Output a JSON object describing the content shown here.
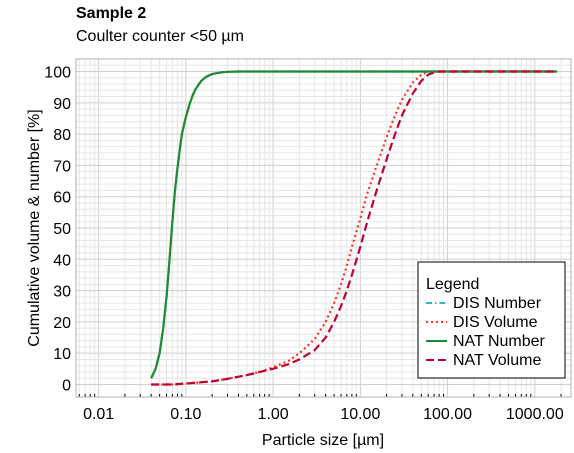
{
  "chart_data": {
    "type": "line",
    "title": "Sample 2",
    "subtitle": "Coulter counter <50 µm",
    "xlabel": "Particle size [µm]",
    "ylabel": "Cumulative volume & number [%]",
    "xscale": "log",
    "xlim": [
      0.0055,
      2600
    ],
    "ylim": [
      -4,
      104
    ],
    "xticks": [
      0.01,
      0.1,
      1,
      10,
      100,
      1000
    ],
    "xtick_labels": [
      "0.01",
      "0.10",
      "1.00",
      "10.00",
      "100.00",
      "1000.00"
    ],
    "yticks": [
      0,
      10,
      20,
      30,
      40,
      50,
      60,
      70,
      80,
      90,
      100
    ],
    "grid": true,
    "legend": {
      "title": "Legend",
      "position": "bottom-right"
    },
    "series": [
      {
        "name": "DIS Number",
        "color": "#3cb4b4",
        "dash": "dashdot",
        "x": [
          0.04,
          0.045,
          0.05,
          0.055,
          0.06,
          0.065,
          0.07,
          0.075,
          0.08,
          0.085,
          0.09,
          0.1,
          0.11,
          0.12,
          0.13,
          0.15,
          0.17,
          0.2,
          0.25,
          0.3,
          0.4,
          0.5,
          0.7,
          1,
          2,
          5,
          10,
          20,
          50,
          100,
          200,
          500,
          1000,
          1800
        ],
        "y": [
          2,
          5,
          10,
          18,
          28,
          40,
          52,
          62,
          69,
          75,
          80,
          85.5,
          89.5,
          92.5,
          94.5,
          97,
          98.3,
          99.2,
          99.7,
          99.9,
          100,
          100,
          100,
          100,
          100,
          100,
          100,
          100,
          100,
          100,
          100,
          100,
          100,
          100
        ]
      },
      {
        "name": "DIS Volume",
        "color": "#ff3322",
        "dash": "dotted",
        "x": [
          0.04,
          0.07,
          0.1,
          0.2,
          0.3,
          0.5,
          0.7,
          1,
          1.5,
          2,
          3,
          4,
          5,
          6,
          7,
          8,
          10,
          12,
          15,
          20,
          25,
          30,
          40,
          50,
          60,
          70,
          80,
          100,
          200,
          500,
          1000,
          1800
        ],
        "y": [
          0,
          0,
          0.3,
          1,
          1.8,
          3,
          4,
          5.5,
          7.5,
          10,
          14.5,
          20,
          26,
          32,
          38,
          44,
          53,
          61,
          69,
          79,
          86,
          91,
          96.5,
          99,
          100,
          100,
          100,
          100,
          100,
          100,
          100,
          100
        ]
      },
      {
        "name": "NAT Number",
        "color": "#1e8a32",
        "dash": "solid",
        "x": [
          0.04,
          0.045,
          0.05,
          0.055,
          0.06,
          0.065,
          0.07,
          0.075,
          0.08,
          0.085,
          0.09,
          0.1,
          0.11,
          0.12,
          0.13,
          0.15,
          0.17,
          0.2,
          0.25,
          0.3,
          0.4,
          0.5,
          0.7,
          1,
          2,
          5,
          10,
          20,
          50,
          100,
          200,
          500,
          1000,
          1800
        ],
        "y": [
          2,
          5,
          10,
          18,
          28,
          40,
          52,
          62,
          69,
          75,
          80,
          85.5,
          89.5,
          92.5,
          94.5,
          97,
          98.3,
          99.2,
          99.7,
          99.9,
          100,
          100,
          100,
          100,
          100,
          100,
          100,
          100,
          100,
          100,
          100,
          100,
          100,
          100
        ]
      },
      {
        "name": "NAT Volume",
        "color": "#c00030",
        "dash": "dashed",
        "x": [
          0.04,
          0.07,
          0.1,
          0.2,
          0.3,
          0.5,
          0.7,
          1,
          1.5,
          2,
          3,
          4,
          5,
          6,
          7,
          8,
          10,
          12,
          15,
          20,
          25,
          30,
          40,
          50,
          60,
          70,
          80,
          100,
          200,
          500,
          1000,
          1800
        ],
        "y": [
          0,
          0,
          0.3,
          1,
          1.8,
          3,
          4,
          5,
          6.5,
          8,
          11,
          15,
          20,
          25,
          30,
          35,
          44,
          52,
          61,
          72,
          80,
          86,
          93,
          97,
          99,
          99.7,
          100,
          100,
          100,
          100,
          100,
          100
        ]
      }
    ]
  }
}
